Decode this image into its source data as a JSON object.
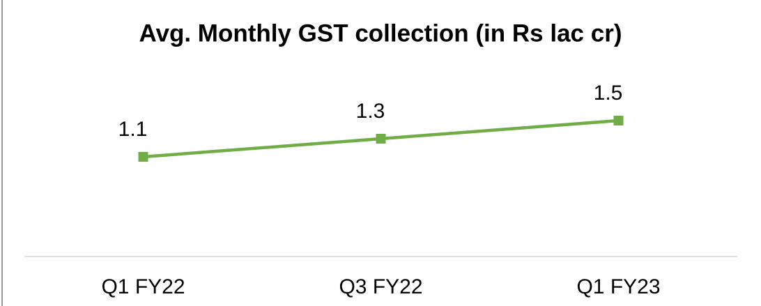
{
  "chart_data": {
    "type": "line",
    "title": "Avg. Monthly GST collection (in Rs lac cr)",
    "categories": [
      "Q1 FY22",
      "Q3 FY22",
      "Q1 FY23"
    ],
    "values": [
      1.1,
      1.3,
      1.5
    ],
    "color": "#70ad47",
    "ylim": [
      0,
      2.5
    ]
  }
}
